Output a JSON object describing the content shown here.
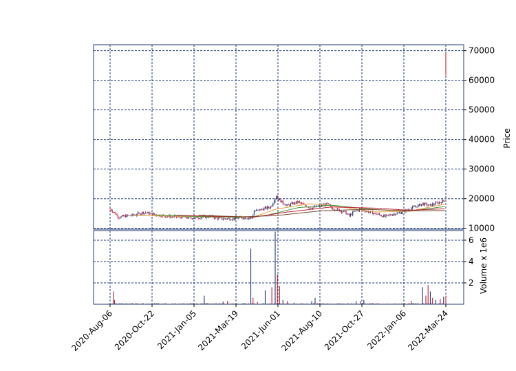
{
  "chart_data": {
    "type": "candlestick",
    "colors": {
      "up": "#1f3b73",
      "down": "#c0203a",
      "grid": "#1f3b73",
      "frame": "#1f3b73"
    },
    "grid": true,
    "x_tick_labels": [
      "2020-Aug-06",
      "2020-Oct-22",
      "2021-Jan-05",
      "2021-Mar-19",
      "2021-Jun-01",
      "2021-Aug-10",
      "2021-Oct-27",
      "2022-Jan-06",
      "2022-Mar-24"
    ],
    "price_panel": {
      "ylabel": "Price",
      "ylim": [
        9700,
        72000
      ],
      "yticks": [
        10000,
        20000,
        30000,
        40000,
        50000,
        60000,
        70000
      ],
      "ytick_labels": [
        "10000",
        "20000",
        "30000",
        "40000",
        "50000",
        "60000",
        "70000"
      ],
      "close_series": [
        {
          "i": 0,
          "v": 16500
        },
        {
          "i": 4,
          "v": 15200
        },
        {
          "i": 8,
          "v": 13800
        },
        {
          "i": 15,
          "v": 14200
        },
        {
          "i": 22,
          "v": 14500
        },
        {
          "i": 30,
          "v": 15400
        },
        {
          "i": 40,
          "v": 14700
        },
        {
          "i": 50,
          "v": 14100
        },
        {
          "i": 60,
          "v": 13900
        },
        {
          "i": 75,
          "v": 13500
        },
        {
          "i": 90,
          "v": 14000
        },
        {
          "i": 100,
          "v": 13200
        },
        {
          "i": 110,
          "v": 13300
        },
        {
          "i": 120,
          "v": 13600
        },
        {
          "i": 128,
          "v": 13500
        },
        {
          "i": 130,
          "v": 15800
        },
        {
          "i": 135,
          "v": 16200
        },
        {
          "i": 140,
          "v": 16800
        },
        {
          "i": 145,
          "v": 17200
        },
        {
          "i": 148,
          "v": 19500
        },
        {
          "i": 150,
          "v": 21000
        },
        {
          "i": 152,
          "v": 19800
        },
        {
          "i": 156,
          "v": 18600
        },
        {
          "i": 160,
          "v": 17600
        },
        {
          "i": 165,
          "v": 18400
        },
        {
          "i": 170,
          "v": 18900
        },
        {
          "i": 175,
          "v": 17800
        },
        {
          "i": 182,
          "v": 16900
        },
        {
          "i": 190,
          "v": 17600
        },
        {
          "i": 196,
          "v": 18200
        },
        {
          "i": 200,
          "v": 16800
        },
        {
          "i": 206,
          "v": 16200
        },
        {
          "i": 212,
          "v": 15400
        },
        {
          "i": 216,
          "v": 14200
        },
        {
          "i": 220,
          "v": 15600
        },
        {
          "i": 226,
          "v": 16500
        },
        {
          "i": 232,
          "v": 15700
        },
        {
          "i": 240,
          "v": 14900
        },
        {
          "i": 248,
          "v": 14000
        },
        {
          "i": 255,
          "v": 14800
        },
        {
          "i": 262,
          "v": 15300
        },
        {
          "i": 268,
          "v": 16200
        },
        {
          "i": 275,
          "v": 17200
        },
        {
          "i": 282,
          "v": 18300
        },
        {
          "i": 288,
          "v": 17700
        },
        {
          "i": 294,
          "v": 18400
        },
        {
          "i": 298,
          "v": 18800
        },
        {
          "i": 302,
          "v": 19500
        },
        {
          "i": 303,
          "v": 66000
        }
      ],
      "ma_lines": [
        {
          "color": "#e8a23c",
          "points": [
            {
              "i": 20,
              "v": 14300
            },
            {
              "i": 60,
              "v": 14100
            },
            {
              "i": 100,
              "v": 13800
            },
            {
              "i": 130,
              "v": 13900
            },
            {
              "i": 150,
              "v": 16500
            },
            {
              "i": 180,
              "v": 18300
            },
            {
              "i": 200,
              "v": 17700
            },
            {
              "i": 240,
              "v": 15500
            },
            {
              "i": 270,
              "v": 15800
            },
            {
              "i": 303,
              "v": 18200
            }
          ]
        },
        {
          "color": "#3a9a3a",
          "points": [
            {
              "i": 40,
              "v": 14500
            },
            {
              "i": 80,
              "v": 14000
            },
            {
              "i": 120,
              "v": 13700
            },
            {
              "i": 140,
              "v": 14300
            },
            {
              "i": 170,
              "v": 17000
            },
            {
              "i": 200,
              "v": 17800
            },
            {
              "i": 240,
              "v": 16300
            },
            {
              "i": 270,
              "v": 15800
            },
            {
              "i": 303,
              "v": 17400
            }
          ]
        },
        {
          "color": "#c0203a",
          "points": [
            {
              "i": 60,
              "v": 14400
            },
            {
              "i": 100,
              "v": 14000
            },
            {
              "i": 130,
              "v": 13800
            },
            {
              "i": 160,
              "v": 15500
            },
            {
              "i": 200,
              "v": 17200
            },
            {
              "i": 240,
              "v": 16800
            },
            {
              "i": 270,
              "v": 16100
            },
            {
              "i": 303,
              "v": 16600
            }
          ]
        },
        {
          "color": "#7a4a2a",
          "points": [
            {
              "i": 80,
              "v": 14400
            },
            {
              "i": 120,
              "v": 13900
            },
            {
              "i": 150,
              "v": 14300
            },
            {
              "i": 190,
              "v": 15900
            },
            {
              "i": 230,
              "v": 16400
            },
            {
              "i": 270,
              "v": 15900
            },
            {
              "i": 303,
              "v": 16000
            }
          ]
        }
      ]
    },
    "volume_panel": {
      "ylabel": "Volume x 1e6",
      "ylim": [
        0,
        6.9
      ],
      "yticks": [
        2,
        4,
        6
      ],
      "ytick_labels": [
        "2",
        "4",
        "6"
      ],
      "spikes": [
        {
          "i": 3,
          "v": 1.2,
          "up": false
        },
        {
          "i": 4,
          "v": 0.4,
          "up": false
        },
        {
          "i": 20,
          "v": 0.1,
          "up": true
        },
        {
          "i": 85,
          "v": 0.8,
          "up": true
        },
        {
          "i": 102,
          "v": 0.25,
          "up": true
        },
        {
          "i": 106,
          "v": 0.3,
          "up": false
        },
        {
          "i": 127,
          "v": 5.2,
          "up": true
        },
        {
          "i": 129,
          "v": 0.6,
          "up": false
        },
        {
          "i": 133,
          "v": 0.2,
          "up": false
        },
        {
          "i": 140,
          "v": 1.3,
          "up": true
        },
        {
          "i": 146,
          "v": 1.6,
          "up": false
        },
        {
          "i": 149,
          "v": 6.8,
          "up": true
        },
        {
          "i": 151,
          "v": 2.8,
          "up": false
        },
        {
          "i": 153,
          "v": 1.7,
          "up": false
        },
        {
          "i": 156,
          "v": 0.4,
          "up": true
        },
        {
          "i": 160,
          "v": 0.3,
          "up": false
        },
        {
          "i": 166,
          "v": 0.15,
          "up": true
        },
        {
          "i": 182,
          "v": 0.3,
          "up": true
        },
        {
          "i": 185,
          "v": 0.6,
          "up": true
        },
        {
          "i": 222,
          "v": 0.3,
          "up": true
        },
        {
          "i": 226,
          "v": 0.3,
          "up": false
        },
        {
          "i": 229,
          "v": 0.4,
          "up": true
        },
        {
          "i": 272,
          "v": 0.3,
          "up": false
        },
        {
          "i": 282,
          "v": 1.6,
          "up": true
        },
        {
          "i": 285,
          "v": 0.8,
          "up": false
        },
        {
          "i": 287,
          "v": 1.8,
          "up": false
        },
        {
          "i": 289,
          "v": 1.2,
          "up": true
        },
        {
          "i": 291,
          "v": 0.6,
          "up": false
        },
        {
          "i": 294,
          "v": 0.4,
          "up": true
        },
        {
          "i": 298,
          "v": 0.5,
          "up": false
        },
        {
          "i": 301,
          "v": 0.7,
          "up": true
        },
        {
          "i": 303,
          "v": 0.8,
          "up": false
        }
      ]
    }
  }
}
